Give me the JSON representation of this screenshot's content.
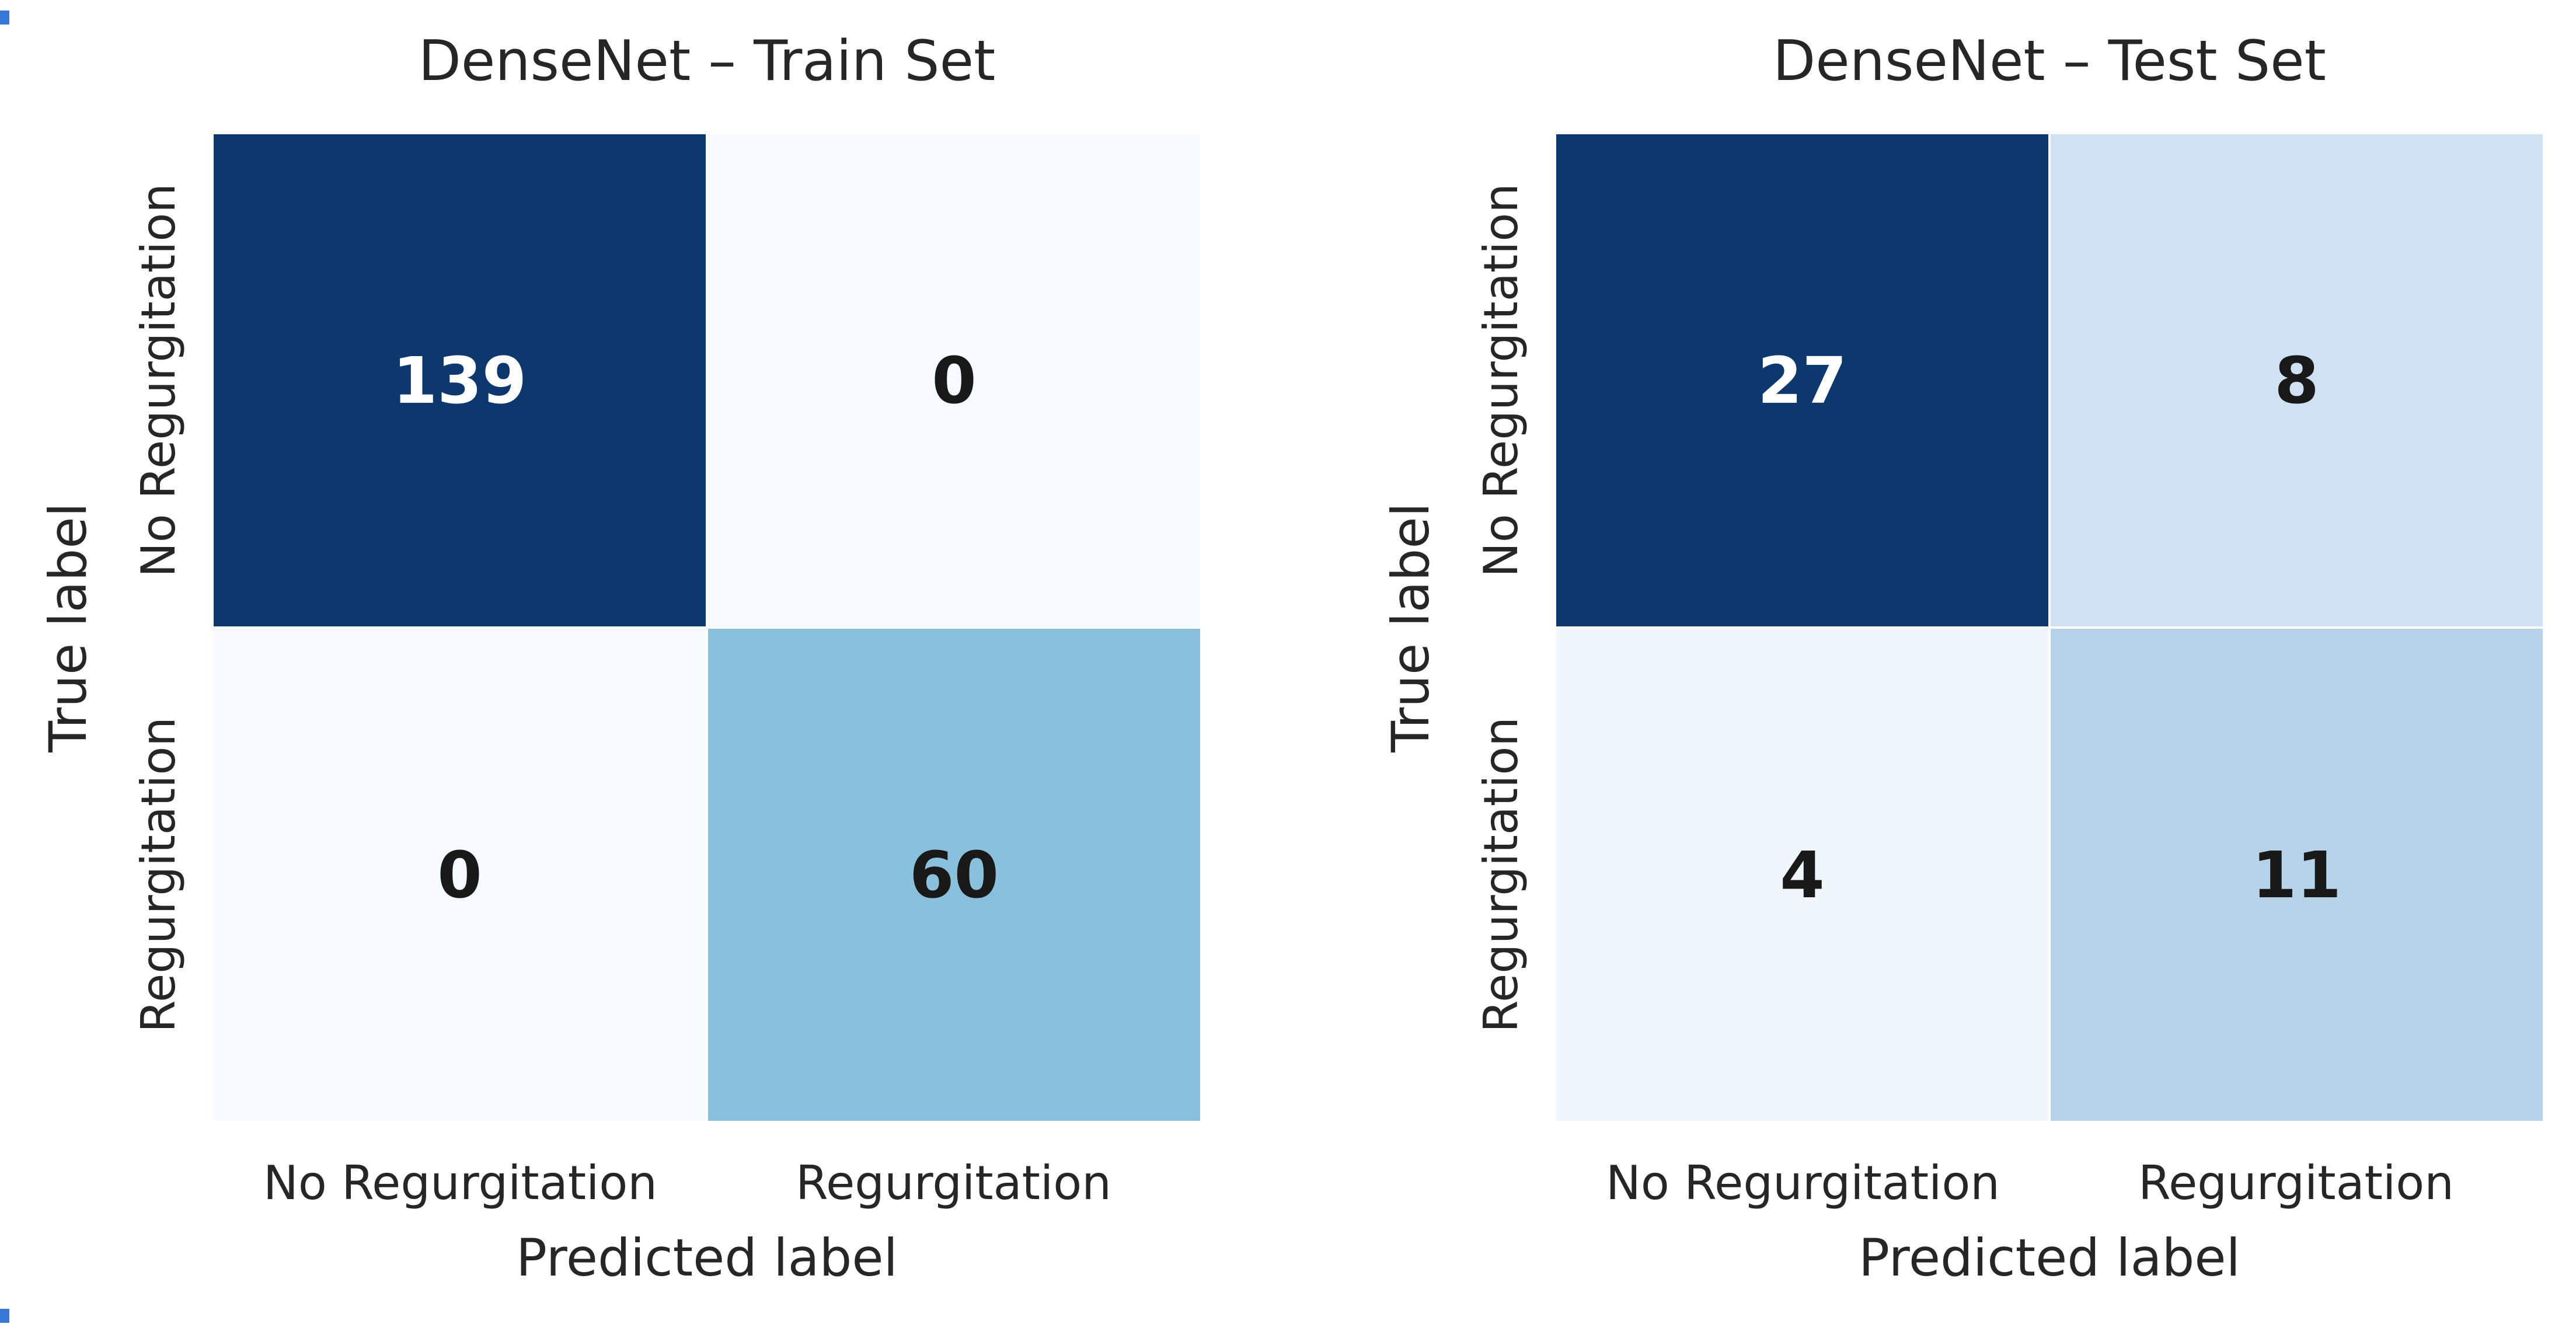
{
  "page": {
    "background": "#ffffff",
    "text_color": "#262626",
    "artifact_color": "#3a78d8"
  },
  "chart_data": [
    {
      "type": "heatmap",
      "title": "DenseNet – Train Set",
      "xlabel": "Predicted label",
      "ylabel": "True label",
      "x_tick_labels": [
        "No Regurgitation",
        "Regurgitation"
      ],
      "y_tick_labels": [
        "No Regurgitation",
        "Regurgitation"
      ],
      "matrix": [
        [
          139,
          0
        ],
        [
          0,
          60
        ]
      ],
      "colormap": "Blues",
      "value_range": [
        0,
        139
      ],
      "legend": "none",
      "grid": "off",
      "cells": [
        {
          "row": "No Regurgitation",
          "col": "No Regurgitation",
          "value": 139,
          "bg": "#0d386d",
          "fg": "#ffffff"
        },
        {
          "row": "No Regurgitation",
          "col": "Regurgitation",
          "value": 0,
          "bg": "#f6fafe",
          "fg": "#191919"
        },
        {
          "row": "Regurgitation",
          "col": "No Regurgitation",
          "value": 0,
          "bg": "#f6fafe",
          "fg": "#191919"
        },
        {
          "row": "Regurgitation",
          "col": "Regurgitation",
          "value": 60,
          "bg": "#8bc0dd",
          "fg": "#191919"
        }
      ]
    },
    {
      "type": "heatmap",
      "title": "DenseNet – Test Set",
      "xlabel": "Predicted label",
      "ylabel": "True label",
      "x_tick_labels": [
        "No Regurgitation",
        "Regurgitation"
      ],
      "y_tick_labels": [
        "No Regurgitation",
        "Regurgitation"
      ],
      "matrix": [
        [
          27,
          8
        ],
        [
          4,
          11
        ]
      ],
      "colormap": "Blues",
      "value_range": [
        0,
        27
      ],
      "legend": "none",
      "grid": "off",
      "cells": [
        {
          "row": "No Regurgitation",
          "col": "No Regurgitation",
          "value": 27,
          "bg": "#0d386d",
          "fg": "#ffffff"
        },
        {
          "row": "No Regurgitation",
          "col": "Regurgitation",
          "value": 8,
          "bg": "#cfe1f2",
          "fg": "#191919"
        },
        {
          "row": "Regurgitation",
          "col": "No Regurgitation",
          "value": 4,
          "bg": "#f0f6fc",
          "fg": "#191919"
        },
        {
          "row": "Regurgitation",
          "col": "Regurgitation",
          "value": 11,
          "bg": "#b7d3ea",
          "fg": "#191919"
        }
      ]
    }
  ]
}
